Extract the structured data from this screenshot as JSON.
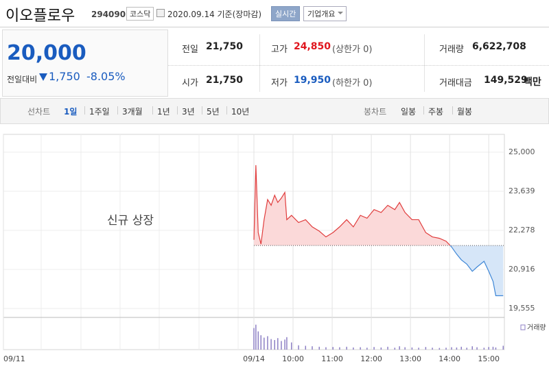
{
  "header": {
    "name": "이오플로우",
    "code": "294090",
    "market": "코스닥",
    "date": "2020.09.14 기준(장마감)",
    "realtime": "실시간",
    "company_info": "기업개요"
  },
  "price": {
    "current": "20,000",
    "change_label": "전일대비",
    "change": "1,750",
    "change_pct": "-8.05%"
  },
  "quote": {
    "prev_close": {
      "label": "전일",
      "value": "21,750"
    },
    "open": {
      "label": "시가",
      "value": "21,750"
    },
    "high": {
      "label": "고가",
      "value": "24,850",
      "note": "(상한가 0)"
    },
    "low": {
      "label": "저가",
      "value": "19,950",
      "note": "(하한가 0)"
    },
    "volume": {
      "label": "거래량",
      "value": "6,622,708"
    },
    "amount": {
      "label": "거래대금",
      "value": "149,529",
      "unit": "백만"
    }
  },
  "tabs": {
    "line_label": "선차트",
    "periods": [
      "1일",
      "1주일",
      "3개월",
      "1년",
      "3년",
      "5년",
      "10년"
    ],
    "selected": 0,
    "candle_label": "봉차트",
    "candles": [
      "일봉",
      "주봉",
      "월봉"
    ]
  },
  "chart_data": {
    "type": "line",
    "annotation": "신규 상장",
    "volume_label": "거래량",
    "x": [
      9.0,
      9.05,
      9.11,
      9.18,
      9.26,
      9.35,
      9.44,
      9.53,
      9.61,
      9.7,
      9.79,
      9.84,
      9.96,
      10.14,
      10.32,
      10.49,
      10.67,
      10.84,
      11.02,
      11.19,
      11.37,
      11.54,
      11.72,
      11.89,
      12.07,
      12.25,
      12.42,
      12.6,
      12.72,
      12.86,
      13.04,
      13.21,
      13.39,
      13.56,
      13.74,
      13.91,
      14.05,
      14.18,
      14.3,
      14.44,
      14.58,
      14.7,
      14.88,
      15.0,
      15.11,
      15.18,
      15.37
    ],
    "values": [
      21950,
      24550,
      22200,
      21800,
      22650,
      23350,
      23150,
      23500,
      23250,
      23400,
      23600,
      22650,
      22800,
      22550,
      22650,
      22400,
      22250,
      22050,
      22200,
      22400,
      22650,
      22400,
      22800,
      22700,
      23000,
      22900,
      23150,
      23000,
      23250,
      22900,
      22650,
      22650,
      22200,
      22050,
      22000,
      21900,
      21700,
      21450,
      21250,
      21100,
      20850,
      21000,
      21200,
      20850,
      20500,
      20000,
      20000
    ],
    "volume": [
      450000,
      520000,
      380000,
      300000,
      250000,
      280000,
      220000,
      200000,
      240000,
      180000,
      210000,
      260000,
      150000,
      90000,
      80000,
      70000,
      60000,
      50000,
      55000,
      50000,
      60000,
      45000,
      50000,
      40000,
      55000,
      45000,
      60000,
      40000,
      70000,
      50000,
      45000,
      40000,
      55000,
      40000,
      35000,
      40000,
      50000,
      45000,
      60000,
      40000,
      70000,
      50000,
      40000,
      55000,
      60000,
      45000,
      80000
    ],
    "volume_lim": [
      0,
      600000
    ],
    "baseline": 21750,
    "up_color": "#e03c3c",
    "down_color": "#3d86d6",
    "up_fill": "#fbd9d9",
    "down_fill": "#d6e6f8",
    "volume_color": "#8c7fc4",
    "ylim": [
      19245,
      25621
    ],
    "yticks": [
      {
        "value": 25000,
        "label": "25,000"
      },
      {
        "value": 23639,
        "label": "23,639"
      },
      {
        "value": 22278,
        "label": "22,278"
      },
      {
        "value": 20916,
        "label": "20,916"
      },
      {
        "value": 19555,
        "label": "19,555"
      }
    ],
    "xlim": [
      2.6,
      15.4
    ],
    "xticks": [
      {
        "value": 2.6,
        "label": "09/11"
      },
      {
        "value": 9,
        "label": "09/14"
      },
      {
        "value": 10,
        "label": "10:00"
      },
      {
        "value": 11,
        "label": "11:00"
      },
      {
        "value": 12,
        "label": "12:00"
      },
      {
        "value": 13,
        "label": "13:00"
      },
      {
        "value": 14,
        "label": "14:00"
      },
      {
        "value": 15,
        "label": "15:00"
      }
    ],
    "grid": true
  }
}
